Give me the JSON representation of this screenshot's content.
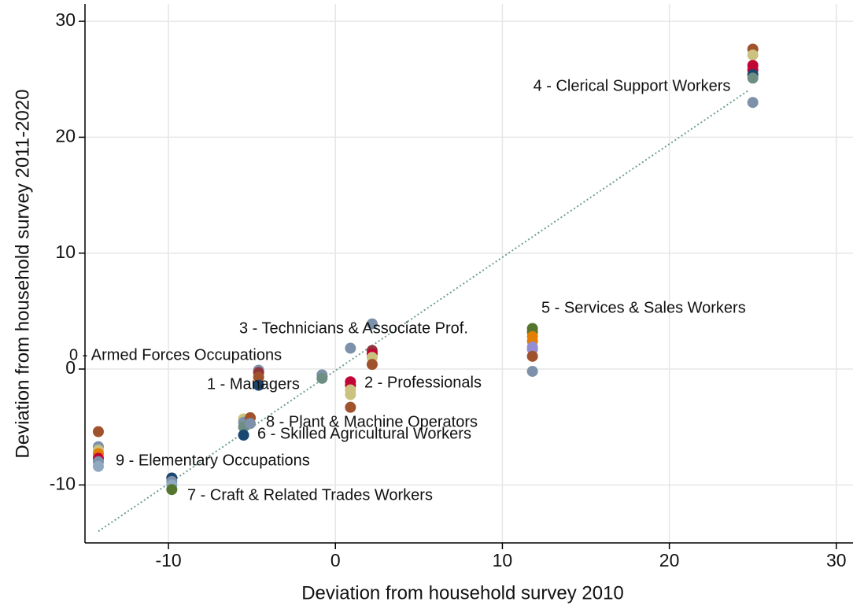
{
  "chart_data": {
    "type": "scatter",
    "x_label": "Deviation from household survey 2010",
    "y_label": "Deviation from household survey 2011-2020",
    "xlim": [
      -15,
      31
    ],
    "ylim": [
      -15,
      31.5
    ],
    "xticks": [
      -10,
      0,
      10,
      20,
      30
    ],
    "yticks": [
      -10,
      0,
      10,
      20,
      30
    ],
    "grid": true,
    "x": [
      -14.2,
      -14.2,
      -14.2,
      -14.2,
      -14.2,
      -14.2,
      -14.2,
      -9.8,
      -9.8,
      -9.8,
      -9.8,
      -5.5,
      -5.5,
      -5.5,
      -5.5,
      -5.1,
      -5.1,
      -4.6,
      -4.6,
      -4.6,
      -4.6,
      -0.8,
      -0.8,
      0.9,
      0.9,
      0.9,
      0.9,
      0.9,
      0.9,
      2.2,
      2.2,
      2.2,
      2.2,
      2.2,
      11.8,
      11.8,
      11.8,
      11.8,
      11.8,
      11.8,
      11.8,
      11.8,
      25,
      25,
      25,
      25,
      25,
      25,
      25
    ],
    "y": [
      -5.4,
      -6.7,
      -7,
      -7.3,
      -7.7,
      -8,
      -8.4,
      -9.4,
      -9.7,
      -10,
      -10.4,
      -4.3,
      -4.6,
      -5,
      -5.7,
      -4.2,
      -4.7,
      -0.1,
      -0.3,
      -0.7,
      -1.4,
      -0.5,
      -0.8,
      1.8,
      -1.1,
      -1.4,
      -1.8,
      -2.2,
      -3.3,
      3.9,
      1.6,
      1.3,
      1,
      0.4,
      3.5,
      3.2,
      2.8,
      2.4,
      1.9,
      1.7,
      1.1,
      -0.2,
      27.6,
      27.1,
      26.2,
      25.8,
      25.4,
      25.1,
      23
    ],
    "colors": [
      "#a0522d",
      "#7d92aa",
      "#cac27e",
      "#e37e00",
      "#c10534",
      "#7d92aa",
      "#90a8c0",
      "#1a476f",
      "#7d92aa",
      "#90a8c0",
      "#55752f",
      "#cac27e",
      "#7d92aa",
      "#6e8e84",
      "#1a476f",
      "#a0522d",
      "#7d92aa",
      "#7d92aa",
      "#90353b",
      "#a0522d",
      "#1a476f",
      "#7d92aa",
      "#6e8e84",
      "#7d92aa",
      "#c10534",
      "#c10534",
      "#cac27e",
      "#cac27e",
      "#a0522d",
      "#7d92aa",
      "#90353b",
      "#c10534",
      "#cac27e",
      "#a0522d",
      "#55752f",
      "#55752f",
      "#e37e00",
      "#e37e00",
      "#938dd2",
      "#938dd2",
      "#a0522d",
      "#7d92aa",
      "#a0522d",
      "#cac27e",
      "#c10534",
      "#c10534",
      "#1a476f",
      "#6e8e84",
      "#7d92aa"
    ],
    "fit_line": {
      "x": [
        -14.2,
        24.8
      ],
      "y": [
        -14,
        24.1
      ],
      "color": "#6e9e94"
    },
    "annotations": [
      "4 - Clerical Support Workers",
      "5 - Services & Sales Workers",
      "3 - Technicians & Associate Prof.",
      "0 - Armed Forces Occupations",
      "1 - Managers",
      "2 - Professionals",
      "8 - Plant & Machine Operators",
      "6 - Skilled Agricultural Workers",
      "9 - Elementary Occupations",
      "7 - Craft & Related Trades Workers"
    ]
  }
}
